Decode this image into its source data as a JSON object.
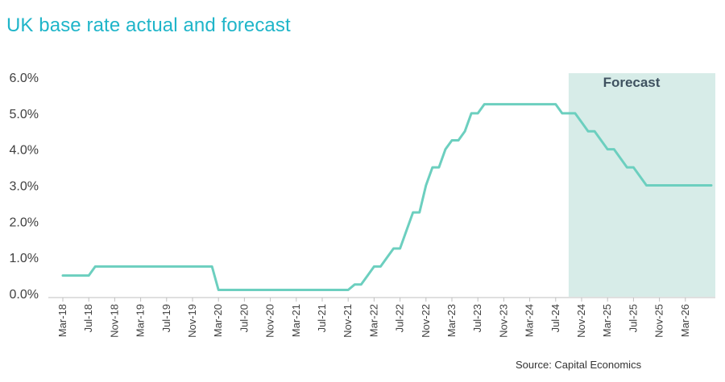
{
  "title": "UK base rate actual and forecast",
  "source": "Source: Capital Economics",
  "forecast_label": "Forecast",
  "colors": {
    "line": "#6ccfbf",
    "forecast_band": "#d7ece8",
    "title": "#1fb5c9",
    "axis": "#bfbfbf"
  },
  "chart_data": {
    "type": "line",
    "title": "UK base rate actual and forecast",
    "xlabel": "",
    "ylabel": "",
    "x_range": [
      "2018-03",
      "2026-07"
    ],
    "ylim": [
      0,
      6
    ],
    "y_ticks": [
      0,
      1,
      2,
      3,
      4,
      5,
      6
    ],
    "y_tick_labels": [
      "0.0%",
      "1.0%",
      "2.0%",
      "3.0%",
      "4.0%",
      "5.0%",
      "6.0%"
    ],
    "x_ticks": [
      "2018-03",
      "2018-07",
      "2018-11",
      "2019-03",
      "2019-07",
      "2019-11",
      "2020-03",
      "2020-07",
      "2020-11",
      "2021-03",
      "2021-07",
      "2021-11",
      "2022-03",
      "2022-07",
      "2022-11",
      "2023-03",
      "2023-07",
      "2023-11",
      "2024-03",
      "2024-07",
      "2024-11",
      "2025-03",
      "2025-07",
      "2025-11",
      "2026-03"
    ],
    "x_tick_labels": [
      "Mar-18",
      "Jul-18",
      "Nov-18",
      "Mar-19",
      "Jul-19",
      "Nov-19",
      "Mar-20",
      "Jul-20",
      "Nov-20",
      "Mar-21",
      "Jul-21",
      "Nov-21",
      "Mar-22",
      "Jul-22",
      "Nov-22",
      "Mar-23",
      "Jul-23",
      "Nov-23",
      "Mar-24",
      "Jul-24",
      "Nov-24",
      "Mar-25",
      "Jul-25",
      "Nov-25",
      "Mar-26"
    ],
    "forecast_start": "2024-09",
    "grid": false,
    "series": [
      {
        "points": [
          [
            "2018-03",
            0.5
          ],
          [
            "2018-07",
            0.5
          ],
          [
            "2018-08",
            0.75
          ],
          [
            "2020-02",
            0.75
          ],
          [
            "2020-03",
            0.1
          ],
          [
            "2021-11",
            0.1
          ],
          [
            "2021-12",
            0.25
          ],
          [
            "2022-01",
            0.25
          ],
          [
            "2022-02",
            0.5
          ],
          [
            "2022-03",
            0.75
          ],
          [
            "2022-04",
            0.75
          ],
          [
            "2022-05",
            1.0
          ],
          [
            "2022-06",
            1.25
          ],
          [
            "2022-07",
            1.25
          ],
          [
            "2022-08",
            1.75
          ],
          [
            "2022-09",
            2.25
          ],
          [
            "2022-10",
            2.25
          ],
          [
            "2022-11",
            3.0
          ],
          [
            "2022-12",
            3.5
          ],
          [
            "2023-01",
            3.5
          ],
          [
            "2023-02",
            4.0
          ],
          [
            "2023-03",
            4.25
          ],
          [
            "2023-04",
            4.25
          ],
          [
            "2023-05",
            4.5
          ],
          [
            "2023-06",
            5.0
          ],
          [
            "2023-07",
            5.0
          ],
          [
            "2023-08",
            5.25
          ],
          [
            "2024-07",
            5.25
          ],
          [
            "2024-08",
            5.0
          ],
          [
            "2024-10",
            5.0
          ],
          [
            "2024-11",
            4.75
          ],
          [
            "2024-12",
            4.5
          ],
          [
            "2025-01",
            4.5
          ],
          [
            "2025-03",
            4.0
          ],
          [
            "2025-04",
            4.0
          ],
          [
            "2025-06",
            3.5
          ],
          [
            "2025-07",
            3.5
          ],
          [
            "2025-09",
            3.0
          ],
          [
            "2026-07",
            3.0
          ]
        ]
      }
    ]
  }
}
